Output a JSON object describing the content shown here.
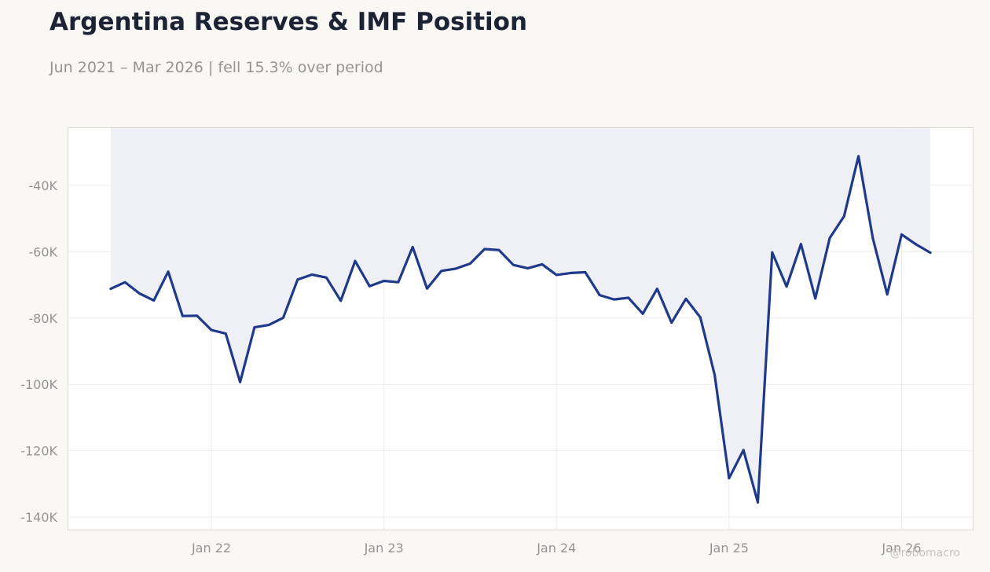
{
  "header": {
    "title": "Argentina Reserves & IMF Position",
    "subtitle": "Jun 2021 – Mar 2026 | fell 15.3% over period"
  },
  "footer": {
    "credit": "@robomacro"
  },
  "colors": {
    "line": "#1f3a8a",
    "fill": "#eeeff5",
    "background": "#f9f8f5",
    "plot_background": "#ffffff",
    "grid": "#ebebeb",
    "tick_text": "#96948e"
  },
  "chart_data": {
    "type": "area",
    "title": "Argentina Reserves & IMF Position",
    "subtitle": "Jun 2021 – Mar 2026 | fell 15.3% over period",
    "xlabel": "",
    "ylabel": "",
    "grid": true,
    "legend": "none",
    "x_tick_labels": [
      "Jan 22",
      "Jan 23",
      "Jan 24",
      "Jan 25",
      "Jan 26"
    ],
    "x_tick_dates": [
      "2022-01",
      "2023-01",
      "2024-01",
      "2025-01",
      "2026-01"
    ],
    "y_ticks": [
      -40000,
      -60000,
      -80000,
      -100000,
      -120000,
      -140000
    ],
    "y_tick_labels": [
      "-40K",
      "-60K",
      "-80K",
      "-100K",
      "-120K",
      "-140K"
    ],
    "xlim": [
      "2021-03",
      "2026-06"
    ],
    "ylim": [
      -144000,
      -22500
    ],
    "fill_to": -22500,
    "series": [
      {
        "x": [
          "2021-06",
          "2021-07",
          "2021-08",
          "2021-09",
          "2021-10",
          "2021-11",
          "2021-12",
          "2022-01",
          "2022-02",
          "2022-03",
          "2022-04",
          "2022-05",
          "2022-06",
          "2022-07",
          "2022-08",
          "2022-09",
          "2022-10",
          "2022-11",
          "2022-12",
          "2023-01",
          "2023-02",
          "2023-03",
          "2023-04",
          "2023-05",
          "2023-06",
          "2023-07",
          "2023-08",
          "2023-09",
          "2023-10",
          "2023-11",
          "2023-12",
          "2024-01",
          "2024-02",
          "2024-03",
          "2024-04",
          "2024-05",
          "2024-06",
          "2024-07",
          "2024-08",
          "2024-09",
          "2024-10",
          "2024-11",
          "2024-12",
          "2025-01",
          "2025-02",
          "2025-03",
          "2025-04",
          "2025-05",
          "2025-06",
          "2025-07",
          "2025-08",
          "2025-09",
          "2025-10",
          "2025-11",
          "2025-12",
          "2026-01",
          "2026-02",
          "2026-03"
        ],
        "values": [
          -71200,
          -69200,
          -72600,
          -74700,
          -66000,
          -79400,
          -79300,
          -83600,
          -84700,
          -99300,
          -82800,
          -82100,
          -79900,
          -68400,
          -66900,
          -67800,
          -74800,
          -62800,
          -70400,
          -68800,
          -69200,
          -58600,
          -71100,
          -65800,
          -65100,
          -63600,
          -59200,
          -59500,
          -64000,
          -65000,
          -63800,
          -67000,
          -66400,
          -66200,
          -73100,
          -74400,
          -73900,
          -78700,
          -71200,
          -81400,
          -74200,
          -79800,
          -97200,
          -128300,
          -119800,
          -135600,
          -60200,
          -70500,
          -57700,
          -74100,
          -55900,
          -49300,
          -31200,
          -56000,
          -72900,
          -54800,
          -57800,
          -60300
        ]
      }
    ]
  }
}
